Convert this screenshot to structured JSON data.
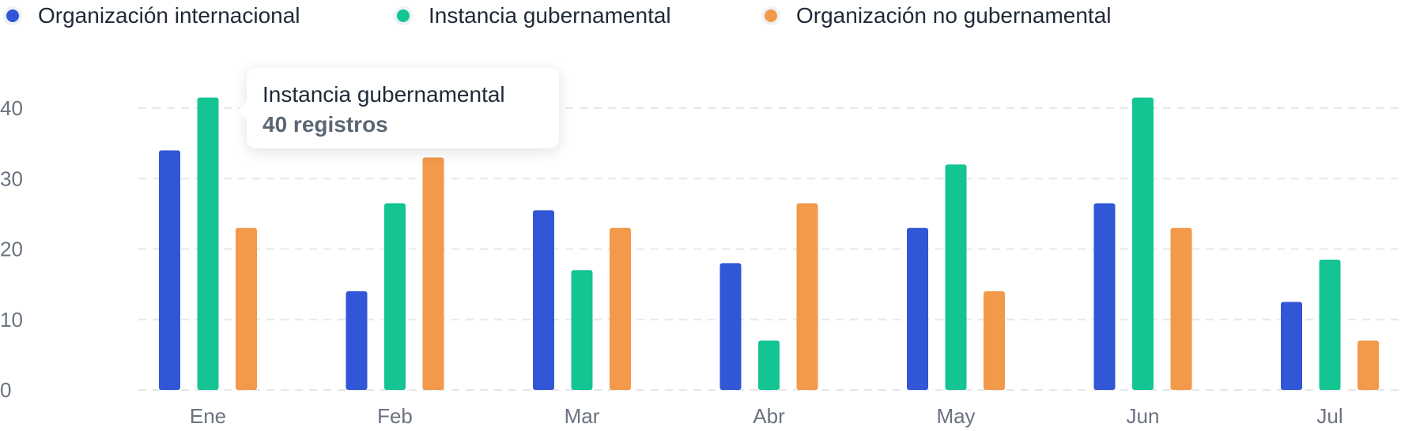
{
  "chart_data": {
    "type": "bar",
    "categories": [
      "Ene",
      "Feb",
      "Mar",
      "Abr",
      "May",
      "Jun",
      "Jul"
    ],
    "series": [
      {
        "name": "Organización internacional",
        "color": "#3156d6",
        "values": [
          34,
          14,
          25.5,
          18,
          23,
          26.5,
          12.5
        ]
      },
      {
        "name": "Instancia gubernamental",
        "color": "#14c493",
        "values": [
          41.5,
          26.5,
          17,
          7,
          32,
          41.5,
          18.5
        ]
      },
      {
        "name": "Organización no gubernamental",
        "color": "#f2994a",
        "values": [
          23,
          33,
          23,
          26.5,
          14,
          23,
          7
        ]
      }
    ],
    "ylim": [
      0,
      40
    ],
    "yticks": [
      0,
      10,
      20,
      30,
      40
    ],
    "grid": true,
    "legend_position": "top-left",
    "title": "",
    "xlabel": "",
    "ylabel": ""
  },
  "tooltip": {
    "title": "Instancia gubernamental",
    "value": "40 registros"
  }
}
